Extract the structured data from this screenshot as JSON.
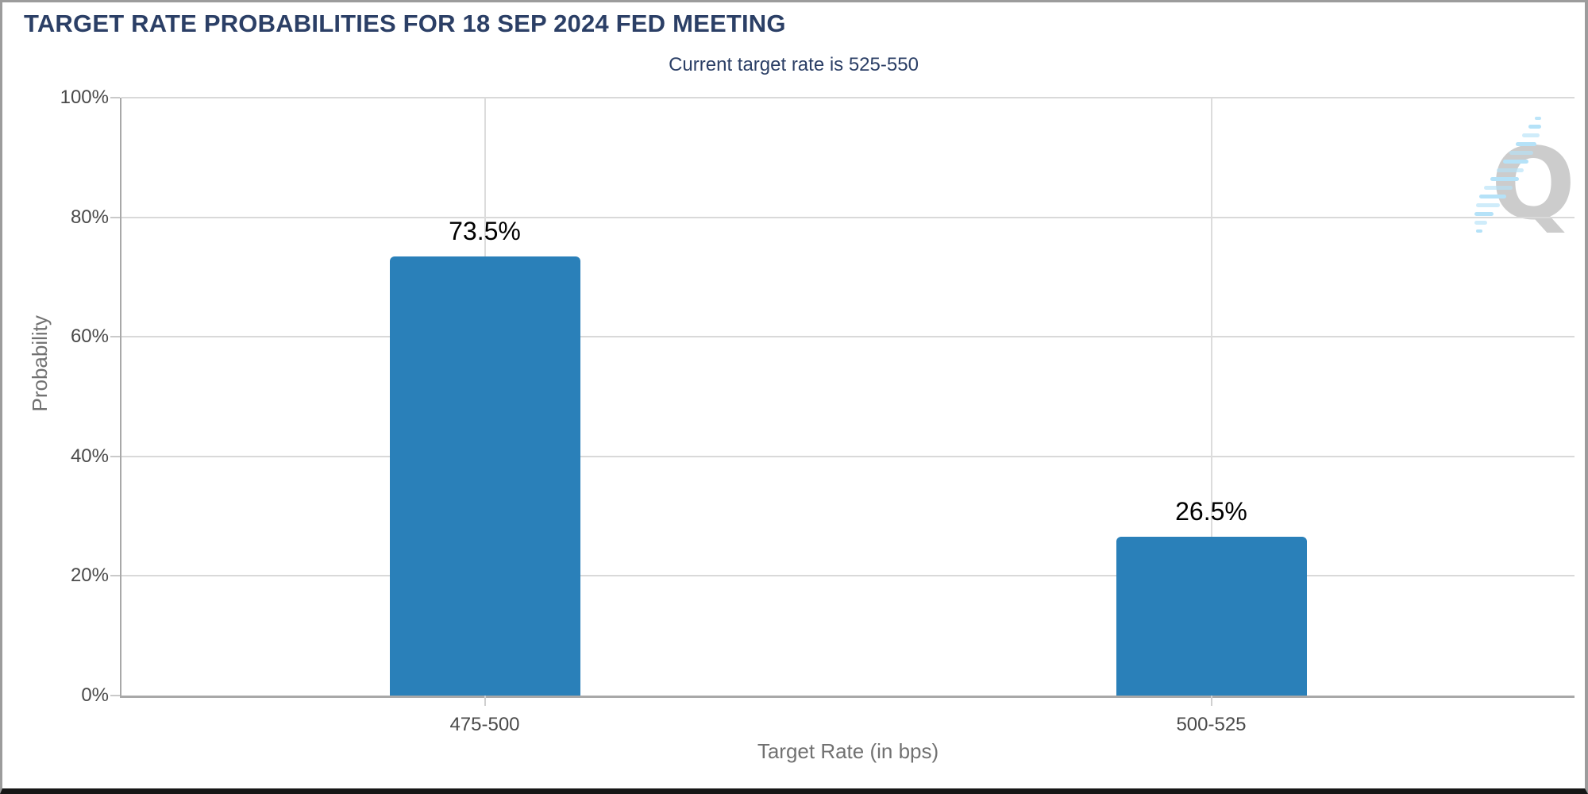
{
  "title": "TARGET RATE PROBABILITIES FOR 18 SEP 2024 FED MEETING",
  "subtitle": "Current target rate is 525-550",
  "watermark": {
    "letter": "Q"
  },
  "colors": {
    "heading_text": "#2b3f66",
    "bar": "#2a80b9",
    "grid": "#d9d9d9",
    "axis": "#a8a8a8",
    "tick_label": "#4a4a4a",
    "axis_title": "#717171",
    "value_label": "#000000",
    "watermark_gray": "#c3c3c3",
    "watermark_blue": "#b5e2f8"
  },
  "chart_data": {
    "type": "bar",
    "title": "TARGET RATE PROBABILITIES FOR 18 SEP 2024 FED MEETING",
    "subtitle": "Current target rate is 525-550",
    "categories": [
      "475-500",
      "500-525"
    ],
    "values": [
      73.5,
      26.5
    ],
    "value_labels": [
      "73.5%",
      "26.5%"
    ],
    "xlabel": "Target Rate (in bps)",
    "ylabel": "Probability",
    "ylim": [
      0,
      100
    ],
    "yticks": [
      0,
      20,
      40,
      60,
      80,
      100
    ],
    "ytick_labels": [
      "0%",
      "20%",
      "40%",
      "60%",
      "80%",
      "100%"
    ],
    "grid": true,
    "legend": false
  }
}
